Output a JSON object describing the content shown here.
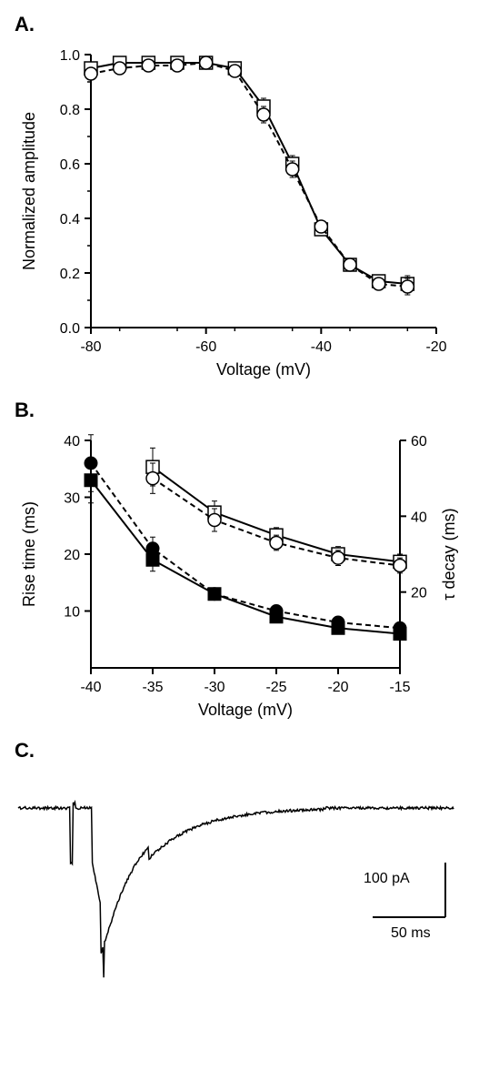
{
  "panelA": {
    "label": "A.",
    "type": "line-scatter",
    "xlabel": "Voltage (mV)",
    "ylabel": "Normalized amplitude",
    "xlim": [
      -80,
      -20
    ],
    "ylim": [
      0.0,
      1.0
    ],
    "xticks": [
      -80,
      -60,
      -40,
      -20
    ],
    "yticks": [
      0.0,
      0.2,
      0.4,
      0.6,
      0.8,
      1.0
    ],
    "tick_fontsize": 16,
    "label_fontsize": 18,
    "series": [
      {
        "name": "squares-solid-line",
        "marker": "square-open",
        "line_dash": "solid",
        "color": "#000000",
        "x": [
          -80,
          -75,
          -70,
          -65,
          -60,
          -55,
          -50,
          -45,
          -40,
          -35,
          -30,
          -25
        ],
        "y": [
          0.95,
          0.97,
          0.97,
          0.97,
          0.97,
          0.95,
          0.81,
          0.6,
          0.36,
          0.23,
          0.17,
          0.16
        ],
        "yerr": [
          0.02,
          0.01,
          0.01,
          0.01,
          0.01,
          0.02,
          0.03,
          0.03,
          0.02,
          0.02,
          0.02,
          0.03
        ]
      },
      {
        "name": "circles-dashed-line",
        "marker": "circle-open",
        "line_dash": "dashed",
        "color": "#000000",
        "x": [
          -80,
          -75,
          -70,
          -65,
          -60,
          -55,
          -50,
          -45,
          -40,
          -35,
          -30,
          -25
        ],
        "y": [
          0.93,
          0.95,
          0.96,
          0.96,
          0.97,
          0.94,
          0.78,
          0.58,
          0.37,
          0.23,
          0.16,
          0.15
        ],
        "yerr": [
          0.02,
          0.01,
          0.01,
          0.01,
          0.01,
          0.02,
          0.03,
          0.03,
          0.02,
          0.02,
          0.02,
          0.03
        ]
      }
    ],
    "background_color": "#ffffff",
    "axis_color": "#000000",
    "line_width": 2,
    "marker_size": 7
  },
  "panelB": {
    "label": "B.",
    "type": "line-scatter-dual-y",
    "xlabel": "Voltage (mV)",
    "ylabel_left": "Rise time (ms)",
    "ylabel_right": "τ decay (ms)",
    "xlim": [
      -40,
      -15
    ],
    "ylim_left": [
      0,
      40
    ],
    "ylim_right": [
      0,
      60
    ],
    "xticks": [
      -40,
      -35,
      -30,
      -25,
      -20,
      -15
    ],
    "yticks_left": [
      10,
      20,
      30,
      40
    ],
    "yticks_right": [
      20,
      40,
      60
    ],
    "tick_fontsize": 16,
    "label_fontsize": 18,
    "series_left": [
      {
        "name": "rise-squares",
        "marker": "square-filled",
        "line_dash": "solid",
        "color": "#000000",
        "x": [
          -40,
          -35,
          -30,
          -25,
          -20,
          -15
        ],
        "y": [
          33,
          19,
          13,
          9,
          7,
          6
        ],
        "yerr": [
          4,
          2,
          1,
          1,
          1,
          1
        ]
      },
      {
        "name": "rise-circles",
        "marker": "circle-filled",
        "line_dash": "dashed",
        "color": "#000000",
        "x": [
          -40,
          -35,
          -30,
          -25,
          -20,
          -15
        ],
        "y": [
          36,
          21,
          13,
          10,
          8,
          7
        ],
        "yerr": [
          5,
          2,
          1,
          1,
          1,
          1
        ]
      }
    ],
    "series_right": [
      {
        "name": "decay-squares",
        "marker": "square-open",
        "line_dash": "solid",
        "color": "#000000",
        "x": [
          -35,
          -30,
          -25,
          -20,
          -15
        ],
        "y": [
          53,
          41,
          35,
          30,
          28
        ],
        "yerr": [
          5,
          3,
          2,
          2,
          2
        ]
      },
      {
        "name": "decay-circles",
        "marker": "circle-open",
        "line_dash": "dashed",
        "color": "#000000",
        "x": [
          -35,
          -30,
          -25,
          -20,
          -15
        ],
        "y": [
          50,
          39,
          33,
          29,
          27
        ],
        "yerr": [
          4,
          3,
          2,
          2,
          2
        ]
      }
    ],
    "background_color": "#ffffff",
    "axis_color": "#000000",
    "line_width": 2,
    "marker_size": 7
  },
  "panelC": {
    "label": "C.",
    "type": "trace",
    "scalebar_x_label": "50 ms",
    "scalebar_y_label": "100 pA",
    "color": "#000000",
    "line_width": 1.5,
    "background_color": "#ffffff"
  }
}
